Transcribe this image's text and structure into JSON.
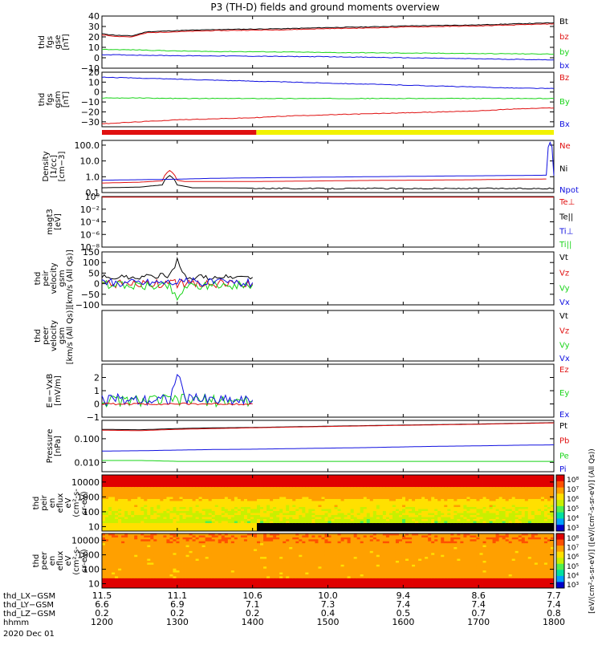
{
  "title": "P3 (TH-D) fields and ground moments overview",
  "date_label": "2020 Dec 01",
  "colors": {
    "black": "#000000",
    "red": "#e01010",
    "green": "#18d418",
    "blue": "#1010e0",
    "yellow": "#f2f200"
  },
  "chart_data": [
    {
      "id": "fgs_gse",
      "type": "line",
      "ylabel_lines": [
        "thd",
        "fgs",
        "gse",
        "[nT]"
      ],
      "ylim": [
        -10,
        40
      ],
      "yticks": [
        "40",
        "30",
        "20",
        "10",
        "0",
        "−10"
      ],
      "xlim": [
        1200,
        1800
      ],
      "legend": [
        {
          "name": "Bt",
          "color": "black"
        },
        {
          "name": "bz",
          "color": "red"
        },
        {
          "name": "by",
          "color": "green"
        },
        {
          "name": "bx",
          "color": "blue"
        }
      ],
      "series": [
        {
          "name": "Bt",
          "color": "black",
          "x": [
            1200,
            1220,
            1240,
            1250,
            1260,
            1280,
            1300,
            1350,
            1400,
            1450,
            1500,
            1550,
            1600,
            1650,
            1700,
            1750,
            1800
          ],
          "y": [
            23,
            21.5,
            21,
            23,
            25,
            25.5,
            26,
            27,
            27.5,
            28,
            29,
            29.5,
            30.5,
            31,
            31.5,
            32.5,
            33.5
          ]
        },
        {
          "name": "bz",
          "color": "red",
          "x": [
            1200,
            1220,
            1240,
            1250,
            1260,
            1280,
            1300,
            1350,
            1400,
            1450,
            1500,
            1550,
            1600,
            1650,
            1700,
            1750,
            1800
          ],
          "y": [
            22,
            20.5,
            20,
            22,
            24,
            24.5,
            25,
            26,
            26.5,
            27,
            28,
            28.5,
            29.5,
            30,
            30.5,
            31.5,
            32.5
          ]
        },
        {
          "name": "by",
          "color": "green",
          "x": [
            1200,
            1250,
            1300,
            1350,
            1400,
            1450,
            1500,
            1550,
            1600,
            1650,
            1700,
            1750,
            1800
          ],
          "y": [
            8,
            7.5,
            6.5,
            6,
            5.8,
            5.5,
            5,
            4.8,
            4.5,
            4.3,
            4,
            3.8,
            3.5
          ]
        },
        {
          "name": "bx",
          "color": "blue",
          "x": [
            1200,
            1250,
            1300,
            1350,
            1400,
            1450,
            1500,
            1550,
            1600,
            1650,
            1700,
            1750,
            1800
          ],
          "y": [
            3,
            2.5,
            2,
            1.8,
            1.5,
            1.2,
            1,
            0.5,
            0,
            -0.5,
            -1,
            -1.5,
            -2
          ]
        }
      ]
    },
    {
      "id": "fgs_gsm",
      "type": "line",
      "ylabel_lines": [
        "thd",
        "fgs",
        "gsm",
        "[nT]"
      ],
      "ylim": [
        -35,
        20
      ],
      "yticks": [
        "20",
        "10",
        "0",
        "−10",
        "−20",
        "−30"
      ],
      "xlim": [
        1200,
        1800
      ],
      "legend": [
        {
          "name": "Bz",
          "color": "red"
        },
        {
          "name": "By",
          "color": "green"
        },
        {
          "name": "Bx",
          "color": "blue"
        }
      ],
      "series": [
        {
          "name": "Bz",
          "color": "red",
          "x": [
            1200,
            1250,
            1300,
            1350,
            1400,
            1450,
            1500,
            1550,
            1600,
            1650,
            1700,
            1750,
            1800
          ],
          "y": [
            -32,
            -30,
            -28,
            -27,
            -26,
            -24,
            -23,
            -22,
            -21,
            -20,
            -19,
            -17,
            -16
          ]
        },
        {
          "name": "By",
          "color": "green",
          "x": [
            1200,
            1250,
            1300,
            1350,
            1400,
            1450,
            1500,
            1550,
            1600,
            1650,
            1700,
            1750,
            1800
          ],
          "y": [
            -6,
            -6,
            -6.5,
            -6.5,
            -6.5,
            -6.5,
            -6.5,
            -6.5,
            -6.5,
            -6.5,
            -6.5,
            -6.5,
            -6.5
          ]
        },
        {
          "name": "Bx",
          "color": "blue",
          "x": [
            1200,
            1250,
            1300,
            1350,
            1400,
            1450,
            1500,
            1550,
            1600,
            1650,
            1700,
            1750,
            1800
          ],
          "y": [
            15,
            14,
            13,
            12,
            11,
            10,
            9,
            8,
            7,
            6,
            5,
            4,
            3.5
          ]
        }
      ],
      "mode_bar": [
        {
          "from": 1200,
          "to": 1405,
          "color": "red"
        },
        {
          "from": 1405,
          "to": 1800,
          "color": "yellow"
        }
      ]
    },
    {
      "id": "density",
      "type": "line",
      "ylabel_lines": [
        "Density",
        "[1/cc]",
        "[cm−3]"
      ],
      "scale": "log",
      "ylim": [
        0.1,
        200
      ],
      "yticks": [
        "100.0",
        "10.0",
        "1.0",
        "0.1"
      ],
      "xlim": [
        1200,
        1800
      ],
      "legend": [
        {
          "name": "Ne",
          "color": "red"
        },
        {
          "name": "Ni",
          "color": "black"
        },
        {
          "name": "Npot",
          "color": "blue"
        }
      ],
      "series": [
        {
          "name": "Ne",
          "color": "red",
          "x": [
            1200,
            1250,
            1280,
            1290,
            1300,
            1310,
            1320,
            1350,
            1400,
            1450,
            1500,
            1550,
            1600,
            1650,
            1700,
            1750,
            1790
          ],
          "y": [
            0.4,
            0.45,
            0.55,
            2.5,
            0.6,
            0.5,
            0.5,
            0.5,
            0.5,
            0.52,
            0.55,
            0.58,
            0.6,
            0.62,
            0.65,
            0.7,
            0.72
          ]
        },
        {
          "name": "Ni",
          "color": "black",
          "x": [
            1200,
            1250,
            1280,
            1290,
            1300,
            1310,
            1320,
            1350,
            1400,
            1450,
            1500,
            1550,
            1600,
            1650,
            1700,
            1750,
            1800
          ],
          "y": [
            0.2,
            0.22,
            0.3,
            1.2,
            0.3,
            0.25,
            0.2,
            0.2,
            0.19,
            0.18,
            0.18,
            0.18,
            0.18,
            0.18,
            0.18,
            0.18,
            0.18
          ]
        },
        {
          "name": "Npot",
          "color": "blue",
          "x": [
            1200,
            1250,
            1300,
            1350,
            1400,
            1450,
            1500,
            1550,
            1600,
            1650,
            1700,
            1750,
            1790,
            1795,
            1800
          ],
          "y": [
            0.6,
            0.65,
            0.7,
            0.8,
            0.85,
            0.9,
            0.95,
            1.0,
            1.05,
            1.1,
            1.15,
            1.2,
            1.25,
            150,
            1.2
          ]
        }
      ]
    },
    {
      "id": "temperature",
      "type": "line",
      "ylabel_lines": [
        "magt3",
        "[eV]"
      ],
      "scale": "log",
      "ylim": [
        1e-08,
        1
      ],
      "yticks": [
        "10⁰",
        "10⁻²",
        "10⁻⁴",
        "10⁻⁶",
        "10⁻⁸"
      ],
      "xlim": [
        1200,
        1800
      ],
      "legend": [
        {
          "name": "Te⊥",
          "color": "red"
        },
        {
          "name": "Te||",
          "color": "black"
        },
        {
          "name": "Ti⊥",
          "color": "blue"
        },
        {
          "name": "Ti||",
          "color": "green"
        }
      ],
      "series": [
        {
          "name": "Te⊥",
          "color": "red",
          "x": [
            1200,
            1800
          ],
          "y": [
            0.8,
            0.8
          ]
        }
      ]
    },
    {
      "id": "peir_velocity",
      "type": "line",
      "ylabel_lines": [
        "thd",
        "peir",
        "velocity",
        "gsm",
        "[km/s (All Qs)]"
      ],
      "ylim": [
        -100,
        150
      ],
      "yticks": [
        "150",
        "100",
        "50",
        "0",
        "−50",
        "−100"
      ],
      "xlim": [
        1200,
        1800
      ],
      "legend": [
        {
          "name": "Vt",
          "color": "black"
        },
        {
          "name": "Vz",
          "color": "red"
        },
        {
          "name": "Vy",
          "color": "green"
        },
        {
          "name": "Vx",
          "color": "blue"
        }
      ],
      "series": [
        {
          "name": "Vt",
          "color": "black",
          "x": [
            1200,
            1250,
            1290,
            1300,
            1310,
            1320,
            1350,
            1400
          ],
          "y": [
            30,
            30,
            40,
            110,
            35,
            30,
            30,
            30
          ]
        },
        {
          "name": "Vz",
          "color": "red",
          "x": [
            1200,
            1300,
            1400
          ],
          "y": [
            0,
            0,
            0
          ]
        },
        {
          "name": "Vy",
          "color": "green",
          "x": [
            1200,
            1290,
            1300,
            1310,
            1400
          ],
          "y": [
            -5,
            -10,
            -80,
            -10,
            -5
          ]
        },
        {
          "name": "Vx",
          "color": "blue",
          "x": [
            1200,
            1300,
            1400
          ],
          "y": [
            5,
            10,
            5
          ]
        }
      ]
    },
    {
      "id": "peer_velocity",
      "type": "line",
      "ylabel_lines": [
        "thd",
        "peer",
        "velocity",
        "gsm",
        "[km/s (All Qs)]"
      ],
      "xlim": [
        1200,
        1800
      ],
      "legend": [
        {
          "name": "Vt",
          "color": "black"
        },
        {
          "name": "Vz",
          "color": "red"
        },
        {
          "name": "Vy",
          "color": "green"
        },
        {
          "name": "Vx",
          "color": "blue"
        }
      ],
      "series": []
    },
    {
      "id": "efield",
      "type": "line",
      "ylabel_lines": [
        "E=−VxB",
        "[mV/m]"
      ],
      "ylim": [
        -1,
        3
      ],
      "yticks": [
        "2",
        "1",
        "0",
        "−1"
      ],
      "xlim": [
        1200,
        1800
      ],
      "legend": [
        {
          "name": "Ez",
          "color": "red"
        },
        {
          "name": "Ey",
          "color": "green"
        },
        {
          "name": "Ex",
          "color": "blue"
        }
      ],
      "series": [
        {
          "name": "Ey",
          "color": "green",
          "x": [
            1200,
            1300,
            1400
          ],
          "y": [
            0.2,
            0.3,
            0.2
          ]
        },
        {
          "name": "Ex",
          "color": "blue",
          "x": [
            1200,
            1290,
            1300,
            1310,
            1400
          ],
          "y": [
            0.3,
            0.4,
            2.2,
            0.4,
            0.3
          ]
        },
        {
          "name": "Ez",
          "color": "red",
          "x": [
            1200,
            1300,
            1400
          ],
          "y": [
            0,
            0,
            0
          ]
        }
      ]
    },
    {
      "id": "pressure",
      "type": "line",
      "ylabel_lines": [
        "Pressure",
        "[nPa]"
      ],
      "scale": "log",
      "ylim": [
        0.004,
        0.6
      ],
      "yticks": [
        "0.100",
        "0.010"
      ],
      "xlim": [
        1200,
        1800
      ],
      "legend": [
        {
          "name": "Pt",
          "color": "black"
        },
        {
          "name": "Pb",
          "color": "red"
        },
        {
          "name": "Pe",
          "color": "green"
        },
        {
          "name": "Pi",
          "color": "blue"
        }
      ],
      "series": [
        {
          "name": "Pt",
          "color": "black",
          "x": [
            1200,
            1250,
            1300,
            1350,
            1400,
            1450,
            1500,
            1550,
            1600,
            1650,
            1700,
            1750,
            1800
          ],
          "y": [
            0.25,
            0.24,
            0.27,
            0.29,
            0.3,
            0.32,
            0.34,
            0.36,
            0.38,
            0.4,
            0.42,
            0.45,
            0.48
          ]
        },
        {
          "name": "Pb",
          "color": "red",
          "x": [
            1200,
            1250,
            1300,
            1350,
            1400,
            1450,
            1500,
            1550,
            1600,
            1650,
            1700,
            1750,
            1800
          ],
          "y": [
            0.23,
            0.22,
            0.25,
            0.27,
            0.29,
            0.31,
            0.33,
            0.35,
            0.37,
            0.39,
            0.41,
            0.44,
            0.47
          ]
        },
        {
          "name": "Pi",
          "color": "blue",
          "x": [
            1200,
            1250,
            1300,
            1350,
            1400,
            1450,
            1500,
            1550,
            1600,
            1650,
            1700,
            1750,
            1800
          ],
          "y": [
            0.03,
            0.031,
            0.033,
            0.035,
            0.036,
            0.038,
            0.04,
            0.042,
            0.045,
            0.048,
            0.05,
            0.053,
            0.055
          ]
        },
        {
          "name": "Pe",
          "color": "green",
          "x": [
            1200,
            1250,
            1300,
            1350,
            1400,
            1450,
            1500,
            1550,
            1600,
            1650,
            1700,
            1750,
            1800
          ],
          "y": [
            0.012,
            0.012,
            0.011,
            0.011,
            0.011,
            0.011,
            0.011,
            0.011,
            0.011,
            0.011,
            0.011,
            0.011,
            0.011
          ]
        }
      ]
    },
    {
      "id": "peir_spec",
      "type": "heatmap",
      "ylabel_lines": [
        "thd",
        "peir",
        "en",
        "eflux",
        "eV",
        "(cm²-s-",
        "sr-eV)"
      ],
      "scale": "log",
      "ylim": [
        5,
        30000
      ],
      "yticks": [
        "10000",
        "1000",
        "100",
        "10"
      ],
      "xlim": [
        1200,
        1800
      ]
    },
    {
      "id": "peer_spec",
      "type": "heatmap",
      "ylabel_lines": [
        "thd",
        "peer",
        "en",
        "eflux",
        "eV",
        "(cm²-s-",
        "sr-eV)"
      ],
      "scale": "log",
      "ylim": [
        5,
        30000
      ],
      "yticks": [
        "10000",
        "1000",
        "100",
        "10"
      ],
      "xlim": [
        1200,
        1800
      ]
    }
  ],
  "colorbar": {
    "ticks": [
      "10⁸",
      "10⁷",
      "10⁶",
      "10⁵",
      "10⁴",
      "10³",
      "10⁸",
      "10⁷",
      "10⁶",
      "10⁵",
      "10⁴",
      "10³"
    ],
    "label": "[eV/(cm²-s-sr-eV)] ([eV/(cm²-s-sr-eV)] (All Qs))"
  },
  "x_axis": {
    "row_labels": [
      "thd_LX−GSM",
      "thd_LY−GSM",
      "thd_LZ−GSM",
      "hhmm"
    ],
    "rows": [
      [
        "11.5",
        "11.1",
        "10.6",
        "10.0",
        "9.4",
        "8.6",
        "7.7"
      ],
      [
        "6.6",
        "6.9",
        "7.1",
        "7.3",
        "7.4",
        "7.4",
        "7.4"
      ],
      [
        "0.2",
        "0.2",
        "0.2",
        "0.4",
        "0.5",
        "0.7",
        "0.8"
      ],
      [
        "1200",
        "1300",
        "1400",
        "1500",
        "1600",
        "1700",
        "1800"
      ]
    ]
  }
}
